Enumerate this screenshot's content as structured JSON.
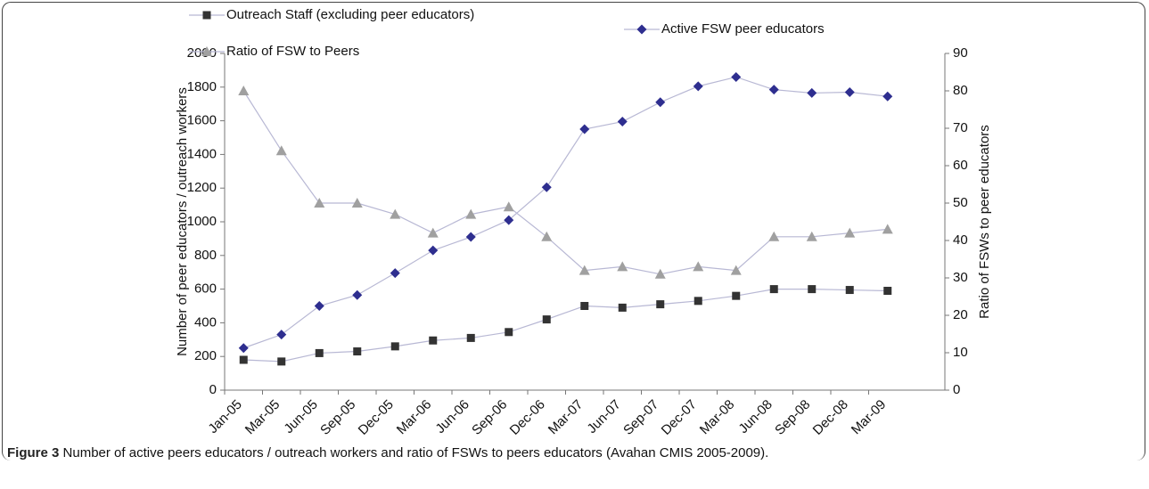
{
  "chart_data": {
    "type": "line",
    "categories": [
      "Jan-05",
      "Mar-05",
      "Jun-05",
      "Sep-05",
      "Dec-05",
      "Mar-06",
      "Jun-06",
      "Sep-06",
      "Dec-06",
      "Mar-07",
      "Jun-07",
      "Sep-07",
      "Dec-07",
      "Mar-08",
      "Jun-08",
      "Sep-08",
      "Dec-08",
      "Mar-09"
    ],
    "series": [
      {
        "name": "Outreach Staff (excluding peer educators)",
        "color": "#333333",
        "marker": "square",
        "values": [
          180,
          170,
          220,
          230,
          260,
          295,
          310,
          345,
          420,
          500,
          490,
          510,
          530,
          560,
          600,
          600,
          595,
          590
        ]
      },
      {
        "name": "Active FSW peer educators",
        "color": "#2e2e8f",
        "marker": "diamond",
        "values": [
          250,
          330,
          500,
          565,
          695,
          830,
          910,
          1010,
          1205,
          1550,
          1595,
          1710,
          1805,
          1860,
          1785,
          1765,
          1770,
          1745
        ]
      },
      {
        "name": "Ratio of FSW to Peers",
        "color": "#a0a0a0",
        "marker": "triangle",
        "axis": "y2",
        "values": [
          80,
          64,
          50,
          50,
          47,
          42,
          47,
          49,
          41,
          32,
          33,
          31,
          33,
          32,
          41,
          41,
          42,
          43
        ]
      }
    ],
    "ylabel": "Number of peer educators / outreach workers",
    "y2label": "Ratio of FSWs to peer educators",
    "ylim": [
      0,
      2000
    ],
    "yticks": [
      0,
      200,
      400,
      600,
      800,
      1000,
      1200,
      1400,
      1600,
      1800,
      2000
    ],
    "y2lim": [
      0,
      90
    ],
    "y2ticks": [
      0,
      10,
      20,
      30,
      40,
      50,
      60,
      70,
      80,
      90
    ]
  },
  "caption": {
    "label": "Figure 3",
    "text": "Number of active peers educators / outreach workers and ratio of FSWs to peers educators (Avahan CMIS 2005-2009)."
  }
}
